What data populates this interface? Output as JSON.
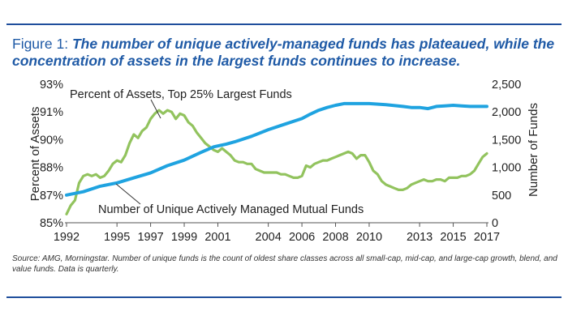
{
  "figure": {
    "label": "Figure 1:",
    "headline": "The number of unique actively-managed funds has plateaued, while the concentration of assets in the largest funds continues to increase."
  },
  "source_note": "Source: AMG, Morningstar. Number of unique funds is the count of oldest share classes across all small-cap, mid-cap, and large-cap growth, blend, and value funds. Data is quarterly.",
  "colors": {
    "rule": "#1f4e9c",
    "title": "#1f5aa6",
    "green": "#92c35e",
    "blue": "#1fa3e0"
  },
  "chart_data": {
    "type": "line",
    "xlabel": "",
    "x_ticks": [
      "1992",
      "1995",
      "1997",
      "1999",
      "2001",
      "2004",
      "2006",
      "2008",
      "2010",
      "2013",
      "2015",
      "2017"
    ],
    "y_left": {
      "label": "Percent of Assets",
      "ticks": [
        "85%",
        "87%",
        "88%",
        "90%",
        "91%",
        "93%"
      ],
      "range": [
        85,
        93
      ]
    },
    "y_right": {
      "label": "Number of Funds",
      "ticks": [
        "0",
        "500",
        "1,000",
        "1,500",
        "2,000",
        "2,500"
      ],
      "range": [
        0,
        2500
      ]
    },
    "grid": false,
    "series": [
      {
        "name": "Percent of Assets, Top 25% Largest Funds",
        "axis": "left",
        "color": "#92c35e",
        "x": [
          1992.0,
          1992.25,
          1992.5,
          1992.75,
          1993.0,
          1993.25,
          1993.5,
          1993.75,
          1994.0,
          1994.25,
          1994.5,
          1994.75,
          1995.0,
          1995.25,
          1995.5,
          1995.75,
          1996.0,
          1996.25,
          1996.5,
          1996.75,
          1997.0,
          1997.25,
          1997.5,
          1997.75,
          1998.0,
          1998.25,
          1998.5,
          1998.75,
          1999.0,
          1999.25,
          1999.5,
          1999.75,
          2000.0,
          2000.25,
          2000.5,
          2000.75,
          2001.0,
          2001.25,
          2001.5,
          2001.75,
          2002.0,
          2002.25,
          2002.5,
          2002.75,
          2003.0,
          2003.25,
          2003.5,
          2003.75,
          2004.0,
          2004.25,
          2004.5,
          2004.75,
          2005.0,
          2005.25,
          2005.5,
          2005.75,
          2006.0,
          2006.25,
          2006.5,
          2006.75,
          2007.0,
          2007.25,
          2007.5,
          2007.75,
          2008.0,
          2008.25,
          2008.5,
          2008.75,
          2009.0,
          2009.25,
          2009.5,
          2009.75,
          2010.0,
          2010.25,
          2010.5,
          2010.75,
          2011.0,
          2011.25,
          2011.5,
          2011.75,
          2012.0,
          2012.25,
          2012.5,
          2012.75,
          2013.0,
          2013.25,
          2013.5,
          2013.75,
          2014.0,
          2014.25,
          2014.5,
          2014.75,
          2015.0,
          2015.25,
          2015.5,
          2015.75,
          2016.0,
          2016.25,
          2016.5,
          2016.75,
          2017.0
        ],
        "y": [
          85.5,
          86.0,
          86.3,
          87.3,
          87.7,
          87.8,
          87.7,
          87.8,
          87.6,
          87.7,
          88.0,
          88.4,
          88.6,
          88.5,
          88.9,
          89.6,
          90.1,
          89.9,
          90.3,
          90.5,
          91.0,
          91.3,
          91.5,
          91.3,
          91.5,
          91.4,
          91.0,
          91.3,
          91.2,
          90.8,
          90.6,
          90.2,
          89.9,
          89.6,
          89.4,
          89.2,
          89.1,
          89.3,
          89.1,
          88.9,
          88.6,
          88.5,
          88.5,
          88.4,
          88.4,
          88.1,
          88.0,
          87.9,
          87.9,
          87.9,
          87.9,
          87.8,
          87.8,
          87.7,
          87.6,
          87.6,
          87.7,
          88.3,
          88.2,
          88.4,
          88.5,
          88.6,
          88.6,
          88.7,
          88.8,
          88.9,
          89.0,
          89.1,
          89.0,
          88.7,
          88.9,
          88.9,
          88.5,
          88.0,
          87.8,
          87.4,
          87.2,
          87.1,
          87.0,
          86.9,
          86.9,
          87.0,
          87.2,
          87.3,
          87.4,
          87.5,
          87.4,
          87.4,
          87.5,
          87.5,
          87.4,
          87.6,
          87.6,
          87.6,
          87.7,
          87.7,
          87.8,
          88.0,
          88.4,
          88.8,
          89.0
        ]
      },
      {
        "name": "Number of Unique Actively Managed Mutual Funds",
        "axis": "right",
        "color": "#1fa3e0",
        "x": [
          1992.0,
          1993.0,
          1994.0,
          1995.0,
          1996.0,
          1997.0,
          1998.0,
          1999.0,
          2000.0,
          2000.75,
          2001.5,
          2002.0,
          2003.0,
          2004.0,
          2005.0,
          2006.0,
          2006.5,
          2007.0,
          2007.5,
          2008.0,
          2008.5,
          2009.0,
          2010.0,
          2011.0,
          2012.0,
          2012.5,
          2013.0,
          2013.5,
          2014.0,
          2014.5,
          2015.0,
          2015.5,
          2016.0,
          2016.5,
          2017.0
        ],
        "y": [
          500,
          560,
          660,
          720,
          810,
          900,
          1030,
          1130,
          1270,
          1370,
          1420,
          1460,
          1560,
          1680,
          1780,
          1880,
          1960,
          2030,
          2080,
          2120,
          2150,
          2150,
          2150,
          2130,
          2100,
          2080,
          2080,
          2060,
          2100,
          2110,
          2120,
          2110,
          2100,
          2100,
          2100
        ]
      }
    ]
  }
}
